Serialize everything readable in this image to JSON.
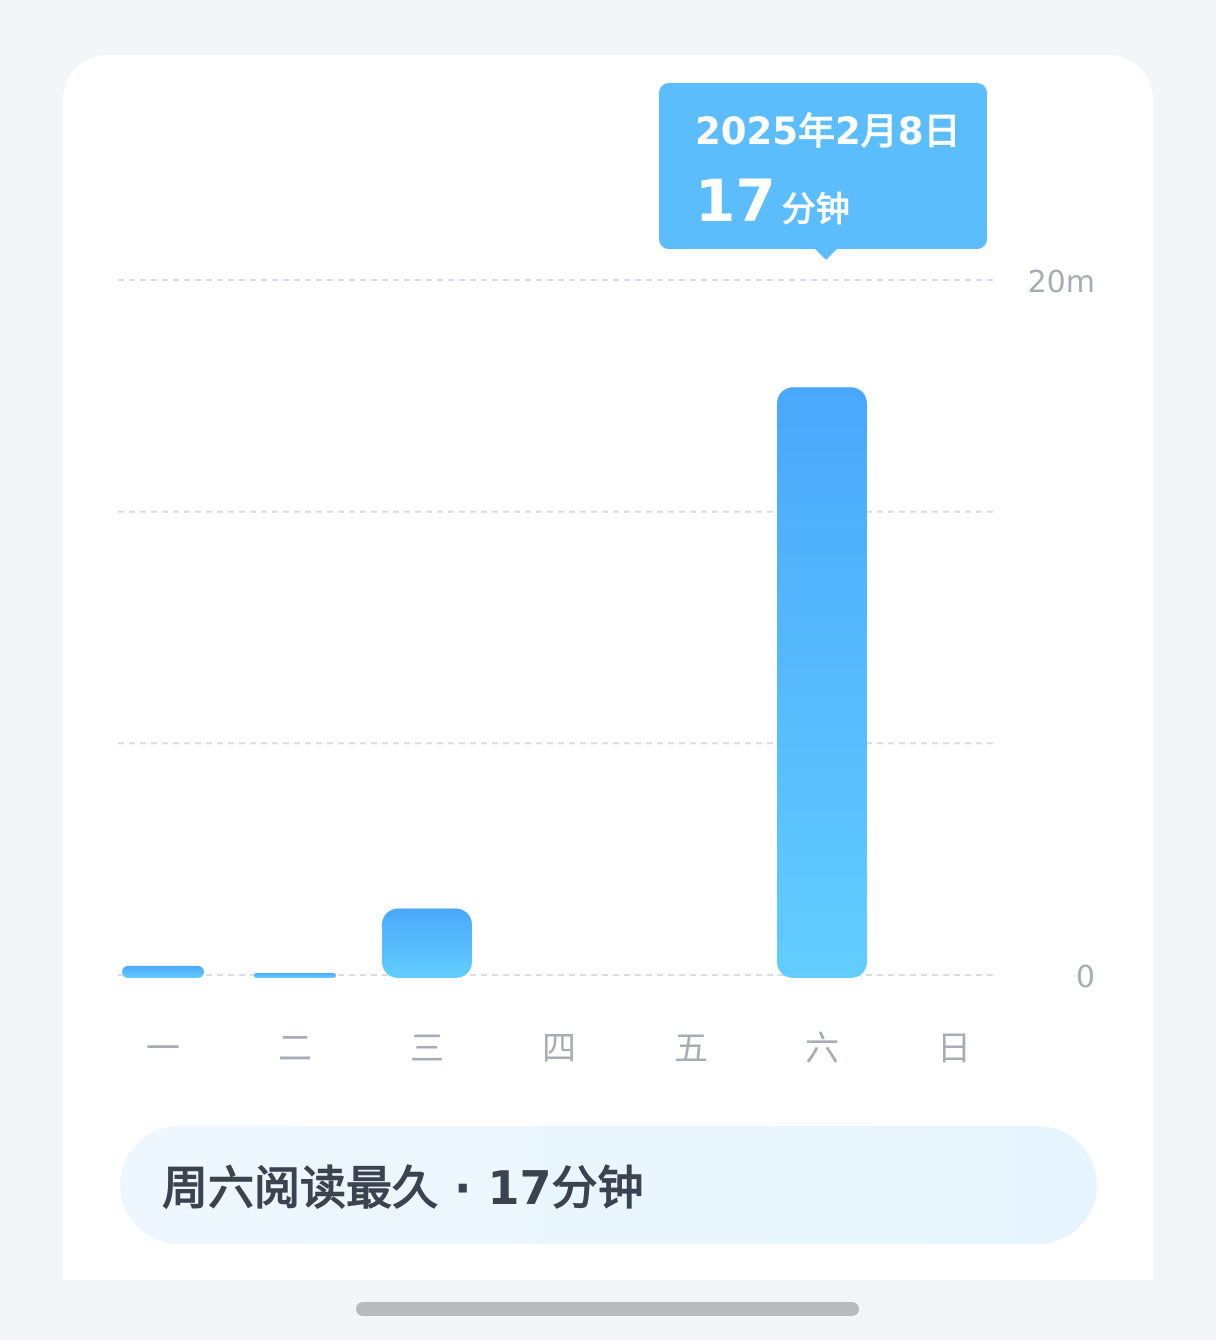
{
  "tooltip": {
    "date": "2025年2月8日",
    "value": "17",
    "unit": "分钟"
  },
  "summary": {
    "text": "周六阅读最久 · 17分钟"
  },
  "colors": {
    "bar_top": "#4aa8fc",
    "bar_bottom": "#62cdfe",
    "tooltip_bg": "#5bbdfc",
    "grid": "#d9dce0",
    "axis_text": "#a9adb3"
  },
  "chart_data": {
    "type": "bar",
    "categories": [
      "一",
      "二",
      "三",
      "四",
      "五",
      "六",
      "日"
    ],
    "values": [
      0.35,
      0.1,
      2.0,
      0,
      0,
      17,
      0
    ],
    "unit": "分钟",
    "ylim": [
      0,
      20
    ],
    "y_tick_labels": [
      {
        "value": 0,
        "label": "0"
      },
      {
        "value": 20,
        "label": "20m"
      }
    ],
    "gridlines": [
      0,
      6.67,
      13.33,
      20
    ],
    "grid": true,
    "legend": "none",
    "highlighted_category": "六"
  }
}
